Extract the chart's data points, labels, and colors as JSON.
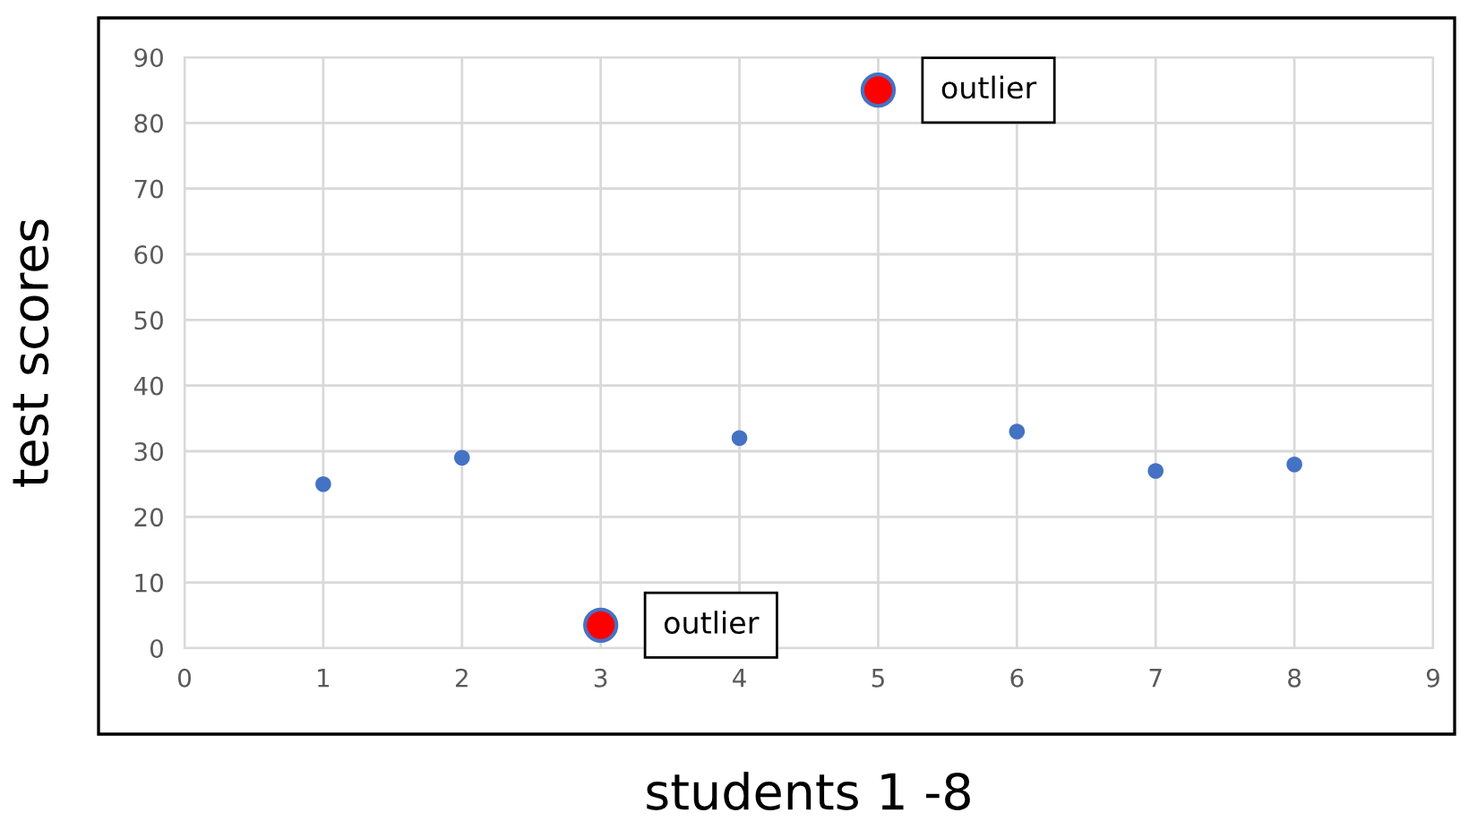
{
  "chart_data": {
    "type": "scatter",
    "xlabel": "students 1 -8",
    "ylabel": "test scores",
    "series": [
      {
        "color": "#4472c4",
        "x": [
          1,
          2,
          4,
          6,
          7,
          8
        ],
        "values": [
          25,
          29,
          32,
          33,
          27,
          28
        ]
      },
      {
        "color": "#ff0000",
        "x": [
          3,
          5
        ],
        "values": [
          3.5,
          85
        ]
      }
    ],
    "xlim": [
      0,
      9
    ],
    "xticks": [
      0,
      1,
      2,
      3,
      4,
      5,
      6,
      7,
      8,
      9
    ],
    "ylim": [
      0,
      90
    ],
    "yticks": [
      0,
      10,
      20,
      30,
      40,
      50,
      60,
      70,
      80,
      90
    ],
    "grid": true,
    "marker": "circle",
    "legend": false,
    "annotations": [
      {
        "text": "outlier",
        "x": 3,
        "y": 3.5
      },
      {
        "text": "outlier",
        "x": 5,
        "y": 85
      }
    ]
  }
}
